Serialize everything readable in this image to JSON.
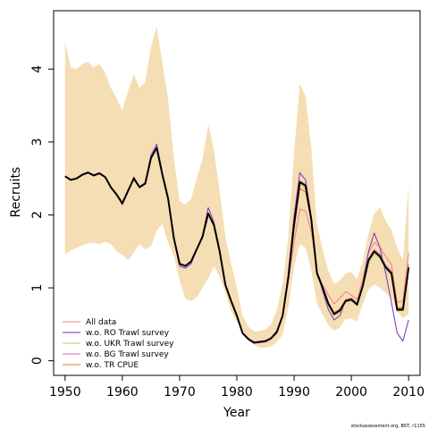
{
  "chart_data": {
    "type": "line",
    "xlabel": "Year",
    "ylabel": "Recruits",
    "xlim": [
      1948,
      2012
    ],
    "ylim": [
      -0.2,
      4.8
    ],
    "x_ticks": [
      1950,
      1960,
      1970,
      1980,
      1990,
      2000,
      2010
    ],
    "y_ticks": [
      0,
      1,
      2,
      3,
      4
    ],
    "legend_position": "bottom-left",
    "footnote": "stockassessment.org, BST, r1155",
    "band": {
      "color": "#f5deb3",
      "years": [
        1950,
        1951,
        1952,
        1953,
        1954,
        1955,
        1956,
        1957,
        1958,
        1959,
        1960,
        1961,
        1962,
        1963,
        1964,
        1965,
        1966,
        1967,
        1968,
        1969,
        1970,
        1971,
        1972,
        1973,
        1974,
        1975,
        1976,
        1977,
        1978,
        1979,
        1980,
        1981,
        1982,
        1983,
        1984,
        1985,
        1986,
        1987,
        1988,
        1989,
        1990,
        1991,
        1992,
        1993,
        1994,
        1995,
        1996,
        1997,
        1998,
        1999,
        2000,
        2001,
        2002,
        2003,
        2004,
        2005,
        2006,
        2007,
        2008,
        2009,
        2010
      ],
      "upper": [
        4.38,
        4.02,
        4.0,
        4.07,
        4.1,
        4.02,
        4.07,
        3.95,
        3.74,
        3.6,
        3.43,
        3.7,
        3.93,
        3.74,
        3.82,
        4.3,
        4.58,
        4.08,
        3.58,
        2.78,
        2.19,
        2.14,
        2.22,
        2.5,
        2.76,
        3.24,
        2.89,
        2.32,
        1.7,
        1.34,
        1.0,
        0.62,
        0.47,
        0.4,
        0.41,
        0.43,
        0.5,
        0.7,
        1.05,
        1.7,
        2.86,
        3.8,
        3.63,
        2.92,
        1.87,
        1.52,
        1.23,
        1.05,
        1.1,
        1.2,
        1.22,
        1.12,
        1.37,
        1.74,
        2.02,
        2.1,
        1.92,
        1.8,
        1.55,
        1.38,
        2.4
      ],
      "lower": [
        1.46,
        1.51,
        1.55,
        1.58,
        1.61,
        1.62,
        1.6,
        1.63,
        1.6,
        1.5,
        1.45,
        1.38,
        1.48,
        1.6,
        1.53,
        1.57,
        1.78,
        1.88,
        1.62,
        1.44,
        1.1,
        0.85,
        0.82,
        0.87,
        1.0,
        1.13,
        1.3,
        1.15,
        0.93,
        0.68,
        0.53,
        0.42,
        0.28,
        0.22,
        0.18,
        0.18,
        0.2,
        0.26,
        0.36,
        0.73,
        1.3,
        1.6,
        1.55,
        1.24,
        0.78,
        0.63,
        0.49,
        0.41,
        0.46,
        0.57,
        0.58,
        0.54,
        0.78,
        0.98,
        1.05,
        1.0,
        0.93,
        0.87,
        0.68,
        0.58,
        0.64
      ]
    },
    "series": [
      {
        "name": "",
        "color": "#000000",
        "width": 2,
        "x": [
          1950,
          1951,
          1952,
          1953,
          1954,
          1955,
          1956,
          1957,
          1958,
          1959,
          1960,
          1961,
          1962,
          1963,
          1964,
          1965,
          1966,
          1967,
          1968,
          1969,
          1970,
          1971,
          1972,
          1973,
          1974,
          1975,
          1976,
          1977,
          1978,
          1979,
          1980,
          1981,
          1982,
          1983,
          1984,
          1985,
          1986,
          1987,
          1988,
          1989,
          1990,
          1991,
          1992,
          1993,
          1994,
          1995,
          1996,
          1997,
          1998,
          1999,
          2000,
          2001,
          2002,
          2003,
          2004,
          2005,
          2006,
          2007,
          2008,
          2009,
          2010
        ],
        "y": [
          2.53,
          2.48,
          2.5,
          2.55,
          2.58,
          2.54,
          2.57,
          2.52,
          2.38,
          2.28,
          2.16,
          2.33,
          2.5,
          2.38,
          2.43,
          2.78,
          2.92,
          2.55,
          2.22,
          1.68,
          1.33,
          1.3,
          1.36,
          1.53,
          1.7,
          2.02,
          1.86,
          1.5,
          1.04,
          0.82,
          0.62,
          0.38,
          0.3,
          0.25,
          0.26,
          0.27,
          0.31,
          0.4,
          0.62,
          1.15,
          1.88,
          2.45,
          2.4,
          1.94,
          1.2,
          1.0,
          0.78,
          0.64,
          0.69,
          0.82,
          0.84,
          0.77,
          1.03,
          1.38,
          1.5,
          1.43,
          1.28,
          1.2,
          0.7,
          0.7,
          1.28
        ]
      },
      {
        "name": "All data",
        "color": "#f08080",
        "width": 1,
        "x": [
          1950,
          1951,
          1952,
          1953,
          1954,
          1955,
          1956,
          1957,
          1958,
          1959,
          1960,
          1961,
          1962,
          1963,
          1964,
          1965,
          1966,
          1967,
          1968,
          1969,
          1970,
          1971,
          1972,
          1973,
          1974,
          1975,
          1976,
          1977,
          1978,
          1979,
          1980,
          1981,
          1982,
          1983,
          1984,
          1985,
          1986,
          1987,
          1988,
          1989,
          1990,
          1991,
          1992,
          1993,
          1994,
          1995,
          1996,
          1997,
          1998,
          1999,
          2000,
          2001,
          2002,
          2003,
          2004,
          2005,
          2006,
          2007,
          2008,
          2009,
          2010
        ],
        "y": [
          2.53,
          2.48,
          2.5,
          2.55,
          2.58,
          2.54,
          2.57,
          2.52,
          2.38,
          2.28,
          2.16,
          2.33,
          2.5,
          2.38,
          2.43,
          2.78,
          2.92,
          2.55,
          2.22,
          1.68,
          1.33,
          1.3,
          1.36,
          1.53,
          1.7,
          2.02,
          1.86,
          1.5,
          1.04,
          0.82,
          0.62,
          0.38,
          0.3,
          0.25,
          0.26,
          0.27,
          0.31,
          0.4,
          0.62,
          1.1,
          1.62,
          2.08,
          2.05,
          1.78,
          1.22,
          1.04,
          0.9,
          0.78,
          0.86,
          0.95,
          0.9,
          0.84,
          1.12,
          1.48,
          1.62,
          1.56,
          1.43,
          1.32,
          0.8,
          0.82,
          1.48
        ]
      },
      {
        "name": "w.o. RO Trawl survey",
        "color": "#7b2fbe",
        "width": 1,
        "x": [
          1950,
          1951,
          1952,
          1953,
          1954,
          1955,
          1956,
          1957,
          1958,
          1959,
          1960,
          1961,
          1962,
          1963,
          1964,
          1965,
          1966,
          1967,
          1968,
          1969,
          1970,
          1971,
          1972,
          1973,
          1974,
          1975,
          1976,
          1977,
          1978,
          1979,
          1980,
          1981,
          1982,
          1983,
          1984,
          1985,
          1986,
          1987,
          1988,
          1989,
          1990,
          1991,
          1992,
          1993,
          1994,
          1995,
          1996,
          1997,
          1998,
          1999,
          2000,
          2001,
          2002,
          2003,
          2004,
          2005,
          2006,
          2007,
          2008,
          2009,
          2010
        ],
        "y": [
          2.53,
          2.49,
          2.5,
          2.56,
          2.59,
          2.55,
          2.58,
          2.52,
          2.37,
          2.27,
          2.14,
          2.32,
          2.52,
          2.39,
          2.44,
          2.82,
          2.97,
          2.58,
          2.25,
          1.7,
          1.3,
          1.27,
          1.33,
          1.52,
          1.72,
          2.1,
          1.9,
          1.52,
          1.05,
          0.82,
          0.6,
          0.37,
          0.29,
          0.24,
          0.25,
          0.26,
          0.3,
          0.38,
          0.6,
          1.2,
          1.98,
          2.58,
          2.48,
          1.98,
          1.22,
          0.95,
          0.7,
          0.56,
          0.62,
          0.82,
          0.85,
          0.76,
          1.05,
          1.5,
          1.75,
          1.55,
          1.2,
          0.8,
          0.38,
          0.27,
          0.56
        ]
      },
      {
        "name": "w.o. UKR Trawl survey",
        "color": "#a8d468",
        "width": 1,
        "x": [
          1950,
          1951,
          1952,
          1953,
          1954,
          1955,
          1956,
          1957,
          1958,
          1959,
          1960,
          1961,
          1962,
          1963,
          1964,
          1965,
          1966,
          1967,
          1968,
          1969,
          1970,
          1971,
          1972,
          1973,
          1974,
          1975,
          1976,
          1977,
          1978,
          1979,
          1980,
          1981,
          1982,
          1983,
          1984,
          1985,
          1986,
          1987,
          1988,
          1989,
          1990,
          1991,
          1992,
          1993,
          1994,
          1995,
          1996,
          1997,
          1998,
          1999,
          2000,
          2001,
          2002,
          2003,
          2004,
          2005,
          2006,
          2007,
          2008,
          2009,
          2010
        ],
        "y": [
          2.53,
          2.48,
          2.5,
          2.55,
          2.58,
          2.54,
          2.57,
          2.52,
          2.38,
          2.28,
          2.16,
          2.33,
          2.5,
          2.38,
          2.43,
          2.78,
          2.92,
          2.55,
          2.22,
          1.68,
          1.33,
          1.3,
          1.36,
          1.53,
          1.7,
          2.02,
          1.86,
          1.5,
          1.04,
          0.82,
          0.62,
          0.38,
          0.3,
          0.25,
          0.26,
          0.27,
          0.31,
          0.4,
          0.62,
          1.14,
          1.85,
          2.42,
          2.36,
          1.9,
          1.18,
          0.98,
          0.76,
          0.62,
          0.67,
          0.8,
          0.82,
          0.76,
          1.0,
          1.34,
          1.47,
          1.4,
          1.26,
          1.17,
          0.68,
          0.69,
          1.25
        ]
      },
      {
        "name": "w.o. BG Trawl survey",
        "color": "#e066c0",
        "width": 1,
        "x": [
          1950,
          1951,
          1952,
          1953,
          1954,
          1955,
          1956,
          1957,
          1958,
          1959,
          1960,
          1961,
          1962,
          1963,
          1964,
          1965,
          1966,
          1967,
          1968,
          1969,
          1970,
          1971,
          1972,
          1973,
          1974,
          1975,
          1976,
          1977,
          1978,
          1979,
          1980,
          1981,
          1982,
          1983,
          1984,
          1985,
          1986,
          1987,
          1988,
          1989,
          1990,
          1991,
          1992,
          1993,
          1994,
          1995,
          1996,
          1997,
          1998,
          1999,
          2000,
          2001,
          2002,
          2003,
          2004,
          2005,
          2006,
          2007,
          2008,
          2009,
          2010
        ],
        "y": [
          2.53,
          2.48,
          2.5,
          2.55,
          2.58,
          2.54,
          2.57,
          2.52,
          2.38,
          2.28,
          2.16,
          2.33,
          2.5,
          2.38,
          2.43,
          2.78,
          2.92,
          2.55,
          2.22,
          1.68,
          1.33,
          1.3,
          1.36,
          1.53,
          1.7,
          2.02,
          1.86,
          1.5,
          1.04,
          0.82,
          0.62,
          0.38,
          0.3,
          0.25,
          0.26,
          0.27,
          0.31,
          0.4,
          0.62,
          1.16,
          1.9,
          2.47,
          2.42,
          1.96,
          1.21,
          1.01,
          0.8,
          0.66,
          0.71,
          0.84,
          0.86,
          0.79,
          1.05,
          1.4,
          1.53,
          1.46,
          1.31,
          1.23,
          0.73,
          0.73,
          1.33
        ]
      },
      {
        "name": "w.o. TR CPUE",
        "color": "#e8703a",
        "width": 1,
        "x": [
          1950,
          1951,
          1952,
          1953,
          1954,
          1955,
          1956,
          1957,
          1958,
          1959,
          1960,
          1961,
          1962,
          1963,
          1964,
          1965,
          1966,
          1967,
          1968,
          1969,
          1970,
          1971,
          1972,
          1973,
          1974,
          1975,
          1976,
          1977,
          1978,
          1979,
          1980,
          1981,
          1982,
          1983,
          1984,
          1985,
          1986,
          1987,
          1988,
          1989,
          1990,
          1991,
          1992,
          1993,
          1994,
          1995,
          1996,
          1997,
          1998,
          1999,
          2000,
          2001,
          2002,
          2003,
          2004,
          2005,
          2006,
          2007,
          2008,
          2009,
          2010
        ],
        "y": [
          2.53,
          2.48,
          2.5,
          2.55,
          2.58,
          2.54,
          2.57,
          2.52,
          2.38,
          2.28,
          2.16,
          2.33,
          2.5,
          2.38,
          2.43,
          2.78,
          2.92,
          2.55,
          2.22,
          1.68,
          1.33,
          1.3,
          1.36,
          1.53,
          1.7,
          2.02,
          1.86,
          1.5,
          1.04,
          0.82,
          0.62,
          0.38,
          0.3,
          0.25,
          0.26,
          0.27,
          0.31,
          0.4,
          0.62,
          1.12,
          1.8,
          2.36,
          2.32,
          1.9,
          1.19,
          0.99,
          0.79,
          0.66,
          0.71,
          0.83,
          0.85,
          0.78,
          1.03,
          1.37,
          1.5,
          1.43,
          1.29,
          1.21,
          0.72,
          0.72,
          1.3
        ]
      }
    ]
  }
}
